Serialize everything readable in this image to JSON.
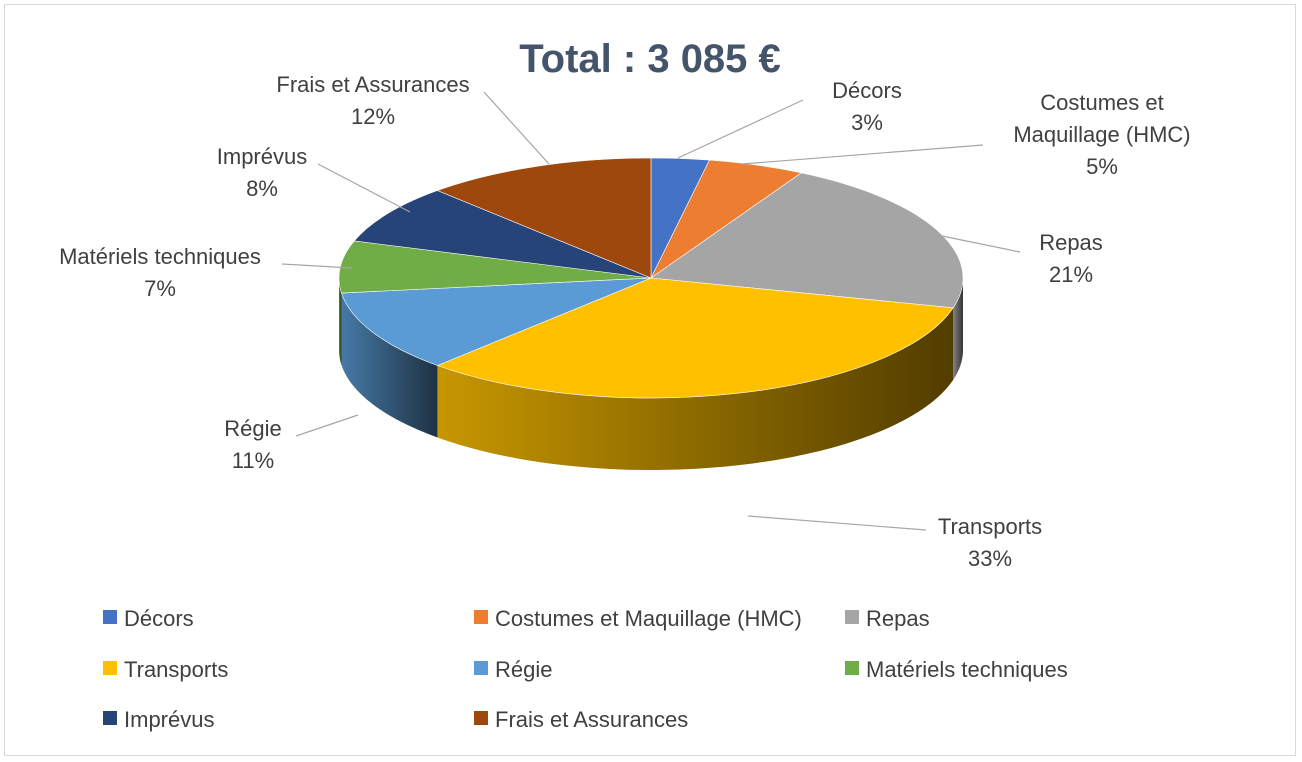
{
  "chart_data": {
    "type": "pie",
    "style": "3d",
    "title": "Total : 3 085 €",
    "slices": [
      {
        "name": "Décors",
        "label_lines": [
          "Décors"
        ],
        "percent_label": "3%",
        "value": 3,
        "color": "#4472c4"
      },
      {
        "name": "Costumes et Maquillage (HMC)",
        "label_lines": [
          "Costumes et",
          "Maquillage (HMC)"
        ],
        "percent_label": "5%",
        "value": 5,
        "color": "#ed7d31"
      },
      {
        "name": "Repas",
        "label_lines": [
          "Repas"
        ],
        "percent_label": "21%",
        "value": 21,
        "color": "#a5a5a5"
      },
      {
        "name": "Transports",
        "label_lines": [
          "Transports"
        ],
        "percent_label": "33%",
        "value": 33,
        "color": "#ffc000"
      },
      {
        "name": "Régie",
        "label_lines": [
          "Régie"
        ],
        "percent_label": "11%",
        "value": 11,
        "color": "#5b9bd5"
      },
      {
        "name": "Matériels techniques",
        "label_lines": [
          "Matériels techniques"
        ],
        "percent_label": "7%",
        "value": 7,
        "color": "#70ad47"
      },
      {
        "name": "Imprévus",
        "label_lines": [
          "Imprévus"
        ],
        "percent_label": "8%",
        "value": 8,
        "color": "#264478"
      },
      {
        "name": "Frais et Assurances",
        "label_lines": [
          "Frais et Assurances"
        ],
        "percent_label": "12%",
        "value": 12,
        "color": "#9e480e"
      }
    ],
    "legend_position": "bottom"
  }
}
